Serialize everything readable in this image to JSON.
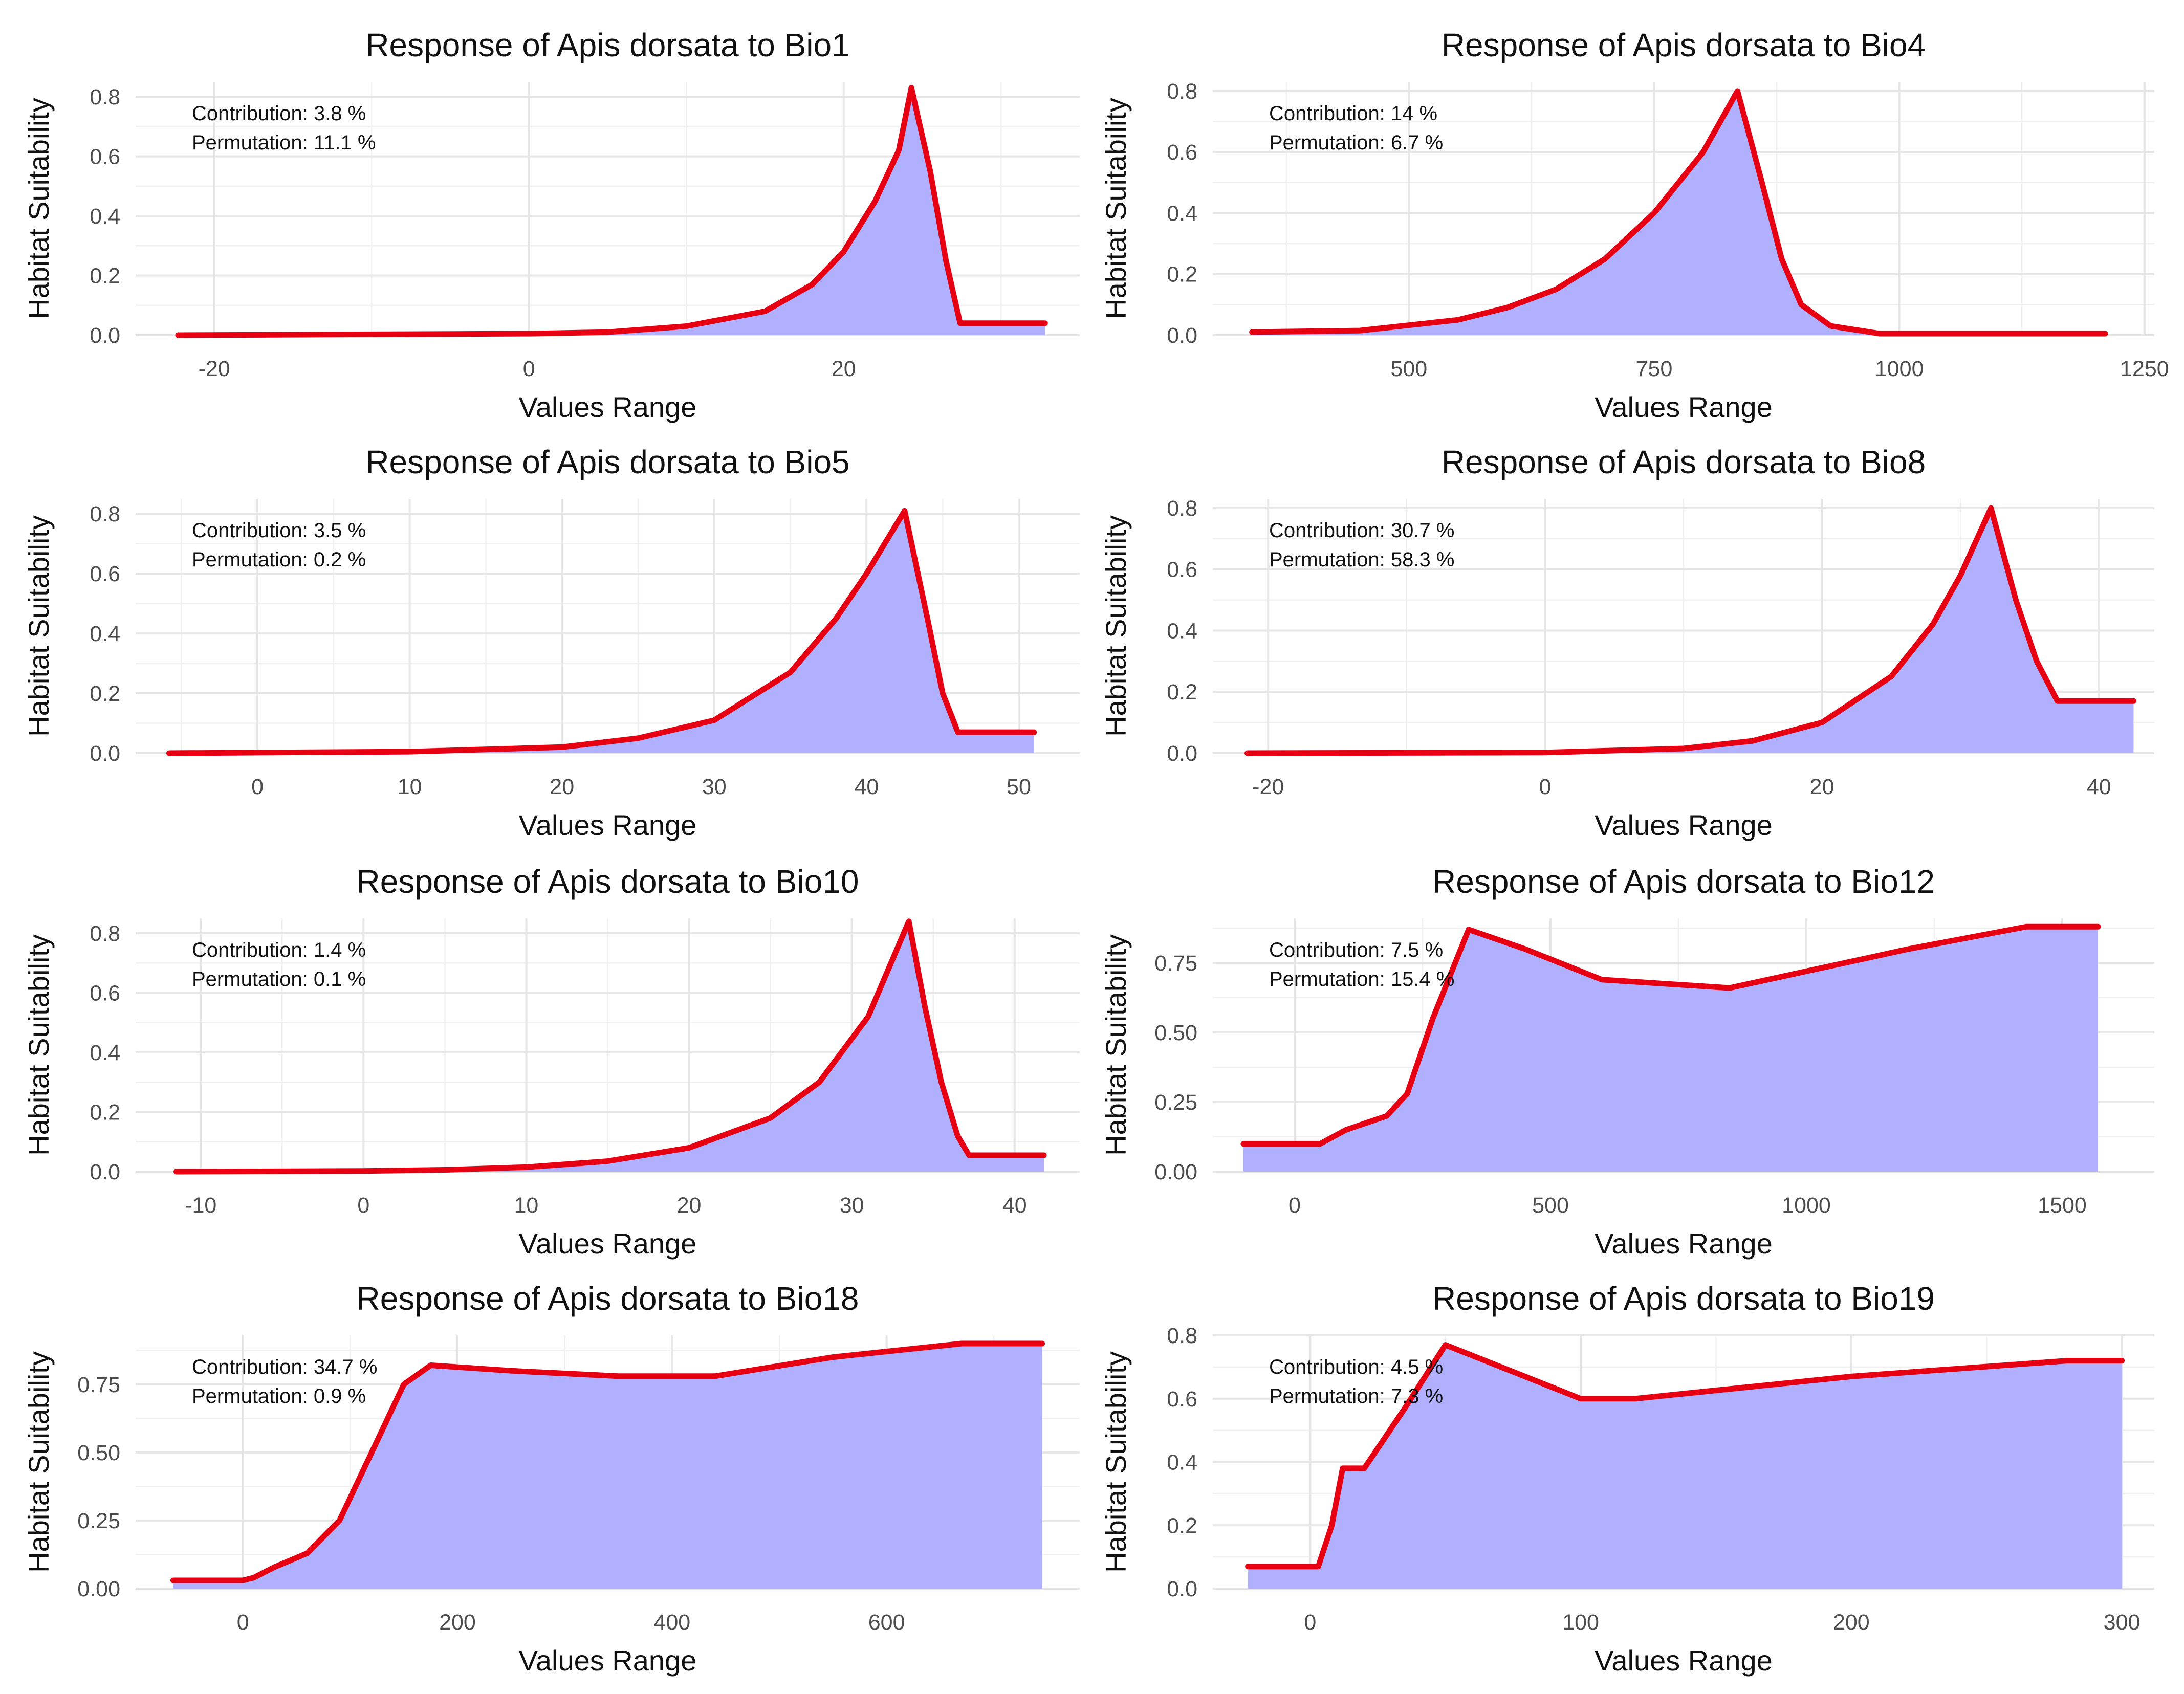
{
  "chart_data": [
    {
      "type": "area",
      "title": "Response of Apis dorsata to Bio1",
      "xlabel": "Values Range",
      "ylabel": "Habitat Suitability",
      "xlim": [
        -25,
        35
      ],
      "ylim": [
        0,
        0.85
      ],
      "xticks": [
        -20,
        0,
        20
      ],
      "xtick_labels": [
        "-20",
        "0",
        "20"
      ],
      "yticks": [
        0,
        0.2,
        0.4,
        0.6,
        0.8
      ],
      "ytick_labels": [
        "0.0",
        "0.2",
        "0.4",
        "0.6",
        "0.8"
      ],
      "annotations": [
        "Contribution: 3.8 %",
        "Permutation: 11.1 %"
      ],
      "x": [
        -22.3,
        0,
        5,
        10,
        15,
        18,
        20,
        22,
        23.5,
        24.3,
        25.5,
        26.5,
        27.4,
        32.8
      ],
      "y": [
        0,
        0.005,
        0.01,
        0.03,
        0.08,
        0.17,
        0.28,
        0.45,
        0.62,
        0.83,
        0.55,
        0.25,
        0.04,
        0.04
      ]
    },
    {
      "type": "area",
      "title": "Response of Apis dorsata to Bio4",
      "xlabel": "Values Range",
      "ylabel": "Habitat Suitability",
      "xlim": [
        300,
        1260
      ],
      "ylim": [
        0,
        0.83
      ],
      "xticks": [
        500,
        750,
        1000,
        1250
      ],
      "xtick_labels": [
        "500",
        "750",
        "1000",
        "1250"
      ],
      "yticks": [
        0,
        0.2,
        0.4,
        0.6,
        0.8
      ],
      "ytick_labels": [
        "0.0",
        "0.2",
        "0.4",
        "0.6",
        "0.8"
      ],
      "annotations": [
        "Contribution: 14 %",
        "Permutation: 6.7 %"
      ],
      "x": [
        340,
        450,
        550,
        600,
        650,
        700,
        750,
        800,
        835,
        860,
        880,
        900,
        930,
        980,
        1210
      ],
      "y": [
        0.01,
        0.015,
        0.05,
        0.09,
        0.15,
        0.25,
        0.4,
        0.6,
        0.8,
        0.5,
        0.25,
        0.1,
        0.03,
        0.005,
        0.005
      ]
    },
    {
      "type": "area",
      "title": "Response of Apis dorsata to Bio5",
      "xlabel": "Values Range",
      "ylabel": "Habitat Suitability",
      "xlim": [
        -8,
        54
      ],
      "ylim": [
        0,
        0.85
      ],
      "xticks": [
        0,
        10,
        20,
        30,
        40,
        50
      ],
      "xtick_labels": [
        "0",
        "10",
        "20",
        "30",
        "40",
        "50"
      ],
      "yticks": [
        0,
        0.2,
        0.4,
        0.6,
        0.8
      ],
      "ytick_labels": [
        "0.0",
        "0.2",
        "0.4",
        "0.6",
        "0.8"
      ],
      "annotations": [
        "Contribution: 3.5 %",
        "Permutation: 0.2 %"
      ],
      "x": [
        -5.8,
        10,
        20,
        25,
        30,
        35,
        38,
        40,
        42.5,
        44,
        45,
        46,
        51
      ],
      "y": [
        0,
        0.005,
        0.02,
        0.05,
        0.11,
        0.27,
        0.45,
        0.6,
        0.81,
        0.45,
        0.2,
        0.07,
        0.07
      ]
    },
    {
      "type": "area",
      "title": "Response of Apis dorsata to Bio8",
      "xlabel": "Values Range",
      "ylabel": "Habitat Suitability",
      "xlim": [
        -24,
        44
      ],
      "ylim": [
        0,
        0.83
      ],
      "xticks": [
        -20,
        0,
        20,
        40
      ],
      "xtick_labels": [
        "-20",
        "0",
        "20",
        "40"
      ],
      "yticks": [
        0,
        0.2,
        0.4,
        0.6,
        0.8
      ],
      "ytick_labels": [
        "0.0",
        "0.2",
        "0.4",
        "0.6",
        "0.8"
      ],
      "annotations": [
        "Contribution: 30.7 %",
        "Permutation: 58.3 %"
      ],
      "x": [
        -21.5,
        0,
        10,
        15,
        20,
        25,
        28,
        30,
        32.2,
        34,
        35.5,
        37,
        42.5
      ],
      "y": [
        0,
        0.002,
        0.015,
        0.04,
        0.1,
        0.25,
        0.42,
        0.58,
        0.8,
        0.5,
        0.3,
        0.17,
        0.17
      ]
    },
    {
      "type": "area",
      "title": "Response of Apis dorsata to Bio10",
      "xlabel": "Values Range",
      "ylabel": "Habitat Suitability",
      "xlim": [
        -14,
        44
      ],
      "ylim": [
        0,
        0.85
      ],
      "xticks": [
        -10,
        0,
        10,
        20,
        30,
        40
      ],
      "xtick_labels": [
        "-10",
        "0",
        "10",
        "20",
        "30",
        "40"
      ],
      "yticks": [
        0,
        0.2,
        0.4,
        0.6,
        0.8
      ],
      "ytick_labels": [
        "0.0",
        "0.2",
        "0.4",
        "0.6",
        "0.8"
      ],
      "annotations": [
        "Contribution: 1.4 %",
        "Permutation: 0.1 %"
      ],
      "x": [
        -11.5,
        0,
        5,
        10,
        15,
        20,
        25,
        28,
        31,
        33.5,
        34.5,
        35.5,
        36.5,
        37.2,
        41.8
      ],
      "y": [
        0,
        0.002,
        0.006,
        0.015,
        0.035,
        0.08,
        0.18,
        0.3,
        0.52,
        0.84,
        0.55,
        0.3,
        0.12,
        0.055,
        0.055
      ]
    },
    {
      "type": "area",
      "title": "Response of Apis dorsata to Bio12",
      "xlabel": "Values Range",
      "ylabel": "Habitat Suitability",
      "xlim": [
        -160,
        1680
      ],
      "ylim": [
        0,
        0.91
      ],
      "xticks": [
        0,
        500,
        1000,
        1500
      ],
      "xtick_labels": [
        "0",
        "500",
        "1000",
        "1500"
      ],
      "yticks": [
        0,
        0.25,
        0.5,
        0.75
      ],
      "ytick_labels": [
        "0.00",
        "0.25",
        "0.50",
        "0.75"
      ],
      "annotations": [
        "Contribution: 7.5 %",
        "Permutation: 15.4 %"
      ],
      "x": [
        -100,
        50,
        100,
        180,
        220,
        270,
        340,
        450,
        600,
        850,
        1000,
        1200,
        1430,
        1570
      ],
      "y": [
        0.1,
        0.1,
        0.15,
        0.2,
        0.28,
        0.55,
        0.87,
        0.8,
        0.69,
        0.66,
        0.72,
        0.8,
        0.88,
        0.88
      ]
    },
    {
      "type": "area",
      "title": "Response of Apis dorsata to Bio18",
      "xlabel": "Values Range",
      "ylabel": "Habitat Suitability",
      "xlim": [
        -100,
        780
      ],
      "ylim": [
        0,
        0.93
      ],
      "xticks": [
        0,
        200,
        400,
        600
      ],
      "xtick_labels": [
        "0",
        "200",
        "400",
        "600"
      ],
      "yticks": [
        0,
        0.25,
        0.5,
        0.75
      ],
      "ytick_labels": [
        "0.00",
        "0.25",
        "0.50",
        "0.75"
      ],
      "annotations": [
        "Contribution: 34.7 %",
        "Permutation: 0.9 %"
      ],
      "x": [
        -65,
        0,
        10,
        30,
        60,
        90,
        120,
        150,
        175,
        250,
        350,
        440,
        550,
        670,
        745
      ],
      "y": [
        0.03,
        0.03,
        0.04,
        0.08,
        0.13,
        0.25,
        0.5,
        0.75,
        0.82,
        0.8,
        0.78,
        0.78,
        0.85,
        0.9,
        0.9
      ]
    },
    {
      "type": "area",
      "title": "Response of Apis dorsata to Bio19",
      "xlabel": "Values Range",
      "ylabel": "Habitat Suitability",
      "xlim": [
        -36,
        312
      ],
      "ylim": [
        0,
        0.8
      ],
      "xticks": [
        0,
        100,
        200,
        300
      ],
      "xtick_labels": [
        "0",
        "100",
        "200",
        "300"
      ],
      "yticks": [
        0,
        0.2,
        0.4,
        0.6,
        0.8
      ],
      "ytick_labels": [
        "0.0",
        "0.2",
        "0.4",
        "0.6",
        "0.8"
      ],
      "annotations": [
        "Contribution: 4.5 %",
        "Permutation: 7.3 %"
      ],
      "x": [
        -23,
        3,
        8,
        12,
        20,
        35,
        50,
        100,
        120,
        200,
        280,
        300
      ],
      "y": [
        0.07,
        0.07,
        0.2,
        0.38,
        0.38,
        0.57,
        0.77,
        0.6,
        0.6,
        0.67,
        0.72,
        0.72
      ]
    }
  ]
}
